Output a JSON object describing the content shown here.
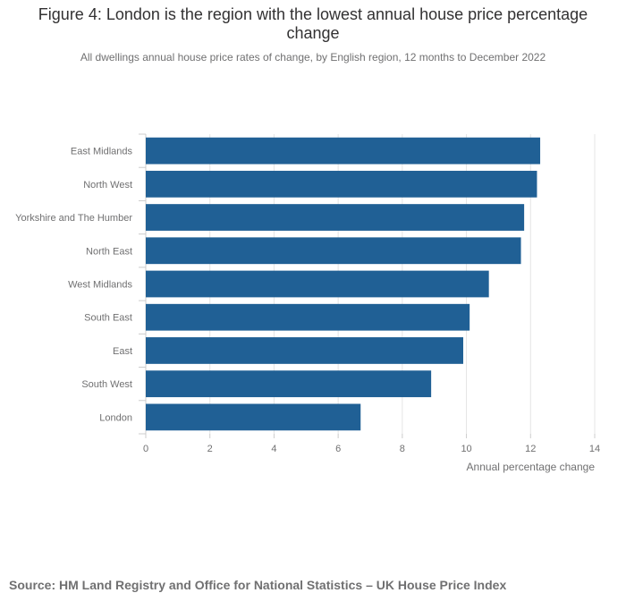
{
  "figure": {
    "title": "Figure 4: London is the region with the lowest annual house price percentage change",
    "subtitle": "All dwellings annual house price rates of change, by English region, 12 months to December 2022",
    "source": "Source: HM Land Registry and Office for National Statistics – UK House Price Index"
  },
  "colors": {
    "bar": "#206095",
    "grid": "#e4e4e4",
    "axis": "#cccccc",
    "text": "#707071"
  },
  "chart_data": {
    "type": "bar",
    "orientation": "horizontal",
    "categories": [
      "East Midlands",
      "North West",
      "Yorkshire and The Humber",
      "North East",
      "West Midlands",
      "South East",
      "East",
      "South West",
      "London"
    ],
    "values": [
      12.3,
      12.2,
      11.8,
      11.7,
      10.7,
      10.1,
      9.9,
      8.9,
      6.7
    ],
    "xlabel": "Annual percentage change",
    "ylabel": "",
    "xlim": [
      0,
      14
    ],
    "xticks": [
      "0",
      "2",
      "4",
      "6",
      "8",
      "10",
      "12",
      "14"
    ],
    "grid": true,
    "legend": "none"
  }
}
